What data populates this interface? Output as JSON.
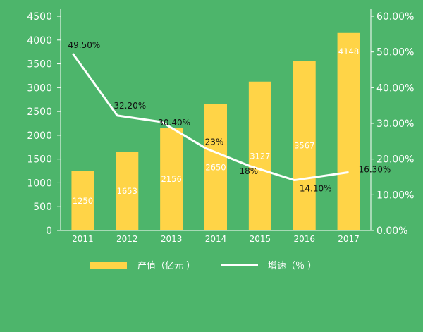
{
  "colors": {
    "background": "#4db56b",
    "bar": "#ffd447",
    "line": "#ffffff",
    "axis": "#ffffff",
    "bar_label": "#ffffff",
    "line_label": "#111111"
  },
  "chart_data": {
    "type": "bar",
    "categories": [
      "2011",
      "2012",
      "2013",
      "2014",
      "2015",
      "2016",
      "2017"
    ],
    "series": [
      {
        "name": "产值（亿元 ）",
        "type": "bar",
        "axis": "left",
        "values": [
          1250,
          1653,
          2156,
          2650,
          3127,
          3567,
          4148
        ],
        "labels": [
          "1250",
          "1653",
          "2156",
          "2650",
          "3127",
          "3567",
          "4148"
        ]
      },
      {
        "name": "增速（％ ）",
        "type": "line",
        "axis": "right",
        "values": [
          49.5,
          32.2,
          30.4,
          23,
          18,
          14.1,
          16.3
        ],
        "labels": [
          "49.50%",
          "32.20%",
          "30.40%",
          "23%",
          "18%",
          "14.10%",
          "16.30%"
        ]
      }
    ],
    "ylim": [
      0,
      4500
    ],
    "y_ticks": [
      "0",
      "500",
      "1000",
      "1500",
      "2000",
      "2500",
      "3000",
      "3500",
      "4000",
      "4500"
    ],
    "y2lim": [
      0,
      60
    ],
    "y2_ticks": [
      "0.00%",
      "10.00%",
      "20.00%",
      "30.00%",
      "40.00%",
      "50.00%",
      "60.00%"
    ],
    "legend_position": "bottom",
    "grid": false
  }
}
